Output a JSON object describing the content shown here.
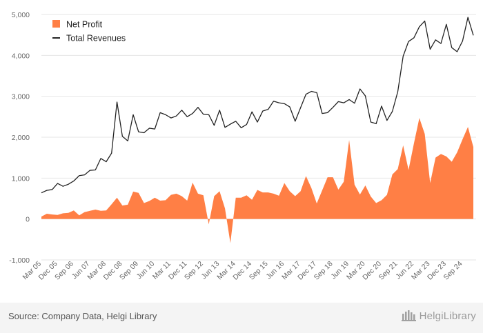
{
  "chart_data": {
    "type": "area",
    "xlabel": "",
    "ylabel": "",
    "ylim": [
      -1000,
      5000
    ],
    "yticks": [
      -1000,
      0,
      1000,
      2000,
      3000,
      4000,
      5000
    ],
    "ytick_labels": [
      "-1,000",
      "0",
      "1,000",
      "2,000",
      "3,000",
      "4,000",
      "5,000"
    ],
    "x_tick_labels": [
      "Mar 05",
      "Dec 05",
      "Sep 06",
      "Jun 07",
      "Mar 08",
      "Dec 08",
      "Sep 09",
      "Jun 10",
      "Mar 11",
      "Dec 11",
      "Sep 12",
      "Jun 13",
      "Mar 14",
      "Dec 14",
      "Sep 15",
      "Jun 16",
      "Mar 17",
      "Dec 17",
      "Sep 18",
      "Jun 19",
      "Mar 20",
      "Dec 20",
      "Sep 21",
      "Jun 22",
      "Mar 23",
      "Dec 23",
      "Sep 24"
    ],
    "grid": true,
    "legend_position": "top-left",
    "series": [
      {
        "name": "Net Profit",
        "kind": "area",
        "color": "#ff7f45",
        "values": [
          60,
          130,
          110,
          100,
          140,
          150,
          210,
          90,
          170,
          200,
          230,
          200,
          210,
          360,
          520,
          330,
          350,
          670,
          640,
          390,
          440,
          520,
          450,
          460,
          590,
          620,
          560,
          450,
          890,
          620,
          580,
          -130,
          560,
          680,
          260,
          -590,
          520,
          520,
          580,
          470,
          710,
          650,
          650,
          620,
          570,
          880,
          680,
          560,
          680,
          1050,
          760,
          380,
          700,
          1020,
          1020,
          720,
          910,
          1930,
          840,
          600,
          820,
          550,
          390,
          460,
          590,
          1090,
          1220,
          1800,
          1200,
          1850,
          2470,
          2080,
          880,
          1500,
          1590,
          1530,
          1400,
          1630,
          1950,
          2250,
          1760
        ]
      },
      {
        "name": "Total Revenues",
        "kind": "line",
        "color": "#222222",
        "values": [
          640,
          700,
          720,
          870,
          800,
          850,
          930,
          1060,
          1080,
          1190,
          1200,
          1480,
          1400,
          1610,
          2860,
          2020,
          1910,
          2550,
          2130,
          2110,
          2220,
          2200,
          2600,
          2550,
          2470,
          2520,
          2660,
          2500,
          2580,
          2730,
          2560,
          2550,
          2290,
          2660,
          2240,
          2320,
          2390,
          2230,
          2310,
          2620,
          2370,
          2640,
          2680,
          2880,
          2840,
          2820,
          2740,
          2390,
          2720,
          3050,
          3120,
          3090,
          2580,
          2600,
          2730,
          2870,
          2840,
          2920,
          2830,
          3180,
          3010,
          2370,
          2330,
          2760,
          2410,
          2630,
          3110,
          3980,
          4340,
          4430,
          4700,
          4840,
          4150,
          4380,
          4290,
          4760,
          4190,
          4090,
          4350,
          4930,
          4490
        ]
      }
    ]
  },
  "footer": {
    "source": "Source: Company Data, Helgi Library",
    "brand": "HelgiLibrary"
  }
}
